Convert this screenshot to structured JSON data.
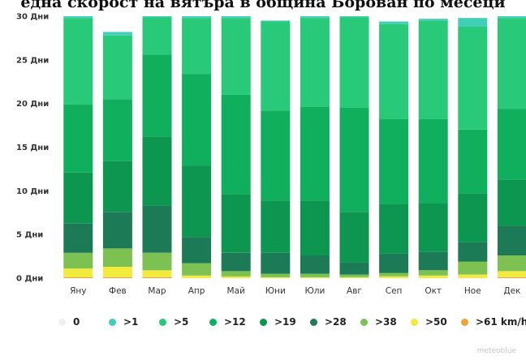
{
  "title": "една скорост на вятъра в община Борован по месеци",
  "watermark": "meteoblue",
  "chart_data": {
    "type": "bar",
    "stacked": true,
    "categories": [
      "Яну",
      "Фев",
      "Мар",
      "Апр",
      "Май",
      "Юни",
      "Юли",
      "Авг",
      "Сеп",
      "Окт",
      "Ное",
      "Дек"
    ],
    "ylim": [
      0,
      30
    ],
    "yticks": [
      {
        "value": 0,
        "label": "0 Дни"
      },
      {
        "value": 5,
        "label": "5 Дни"
      },
      {
        "value": 10,
        "label": "10 Дни"
      },
      {
        "value": 15,
        "label": "15 Дни"
      },
      {
        "value": 20,
        "label": "20 Дни"
      },
      {
        "value": 25,
        "label": "25 Дни"
      },
      {
        "value": 30,
        "label": "30 Дни"
      }
    ],
    "series": [
      {
        "name": ">61 km/h",
        "color": "#f2a335",
        "values": [
          0.1,
          0.1,
          0.1,
          0,
          0,
          0,
          0,
          0,
          0,
          0,
          0,
          0.1
        ]
      },
      {
        "name": ">50",
        "color": "#f2ea3c",
        "values": [
          1.0,
          1.2,
          0.8,
          0.3,
          0.2,
          0.1,
          0.1,
          0.1,
          0.2,
          0.3,
          0.4,
          0.7
        ]
      },
      {
        "name": ">38",
        "color": "#7cc152",
        "values": [
          1.8,
          2.1,
          2.0,
          1.4,
          0.6,
          0.4,
          0.4,
          0.3,
          0.4,
          0.6,
          1.5,
          1.8
        ]
      },
      {
        "name": ">28",
        "color": "#1d7a56",
        "values": [
          3.4,
          4.2,
          5.4,
          3.0,
          2.1,
          2.4,
          2.1,
          1.4,
          2.2,
          2.1,
          2.2,
          3.4
        ]
      },
      {
        "name": ">19",
        "color": "#0c9650",
        "values": [
          5.8,
          5.8,
          7.9,
          8.2,
          6.7,
          6.0,
          6.3,
          5.8,
          5.7,
          5.6,
          5.6,
          5.3
        ]
      },
      {
        "name": ">12",
        "color": "#10af5e",
        "values": [
          7.8,
          7.1,
          9.4,
          10.5,
          11.4,
          10.3,
          10.7,
          11.9,
          9.7,
          9.6,
          7.3,
          8.1
        ]
      },
      {
        "name": ">5",
        "color": "#29c97a",
        "values": [
          9.9,
          7.3,
          4.3,
          6.4,
          8.8,
          10.2,
          10.2,
          10.4,
          10.9,
          11.3,
          11.8,
          10.4
        ]
      },
      {
        "name": ">1",
        "color": "#42cfb9",
        "values": [
          0.2,
          0.4,
          0.1,
          0.2,
          0.2,
          0.1,
          0.2,
          0.1,
          0.3,
          0.2,
          1.0,
          0.2
        ]
      },
      {
        "name": "0",
        "color": "#f0f0f0",
        "values": [
          0,
          0,
          0,
          0,
          0,
          0,
          0,
          0,
          0,
          0,
          0,
          0
        ]
      }
    ],
    "legend": {
      "position": "bottom",
      "order": [
        "0",
        ">1",
        ">5",
        ">12",
        ">19",
        ">28",
        ">38",
        ">50",
        ">61 km/h"
      ]
    },
    "grid": false
  }
}
